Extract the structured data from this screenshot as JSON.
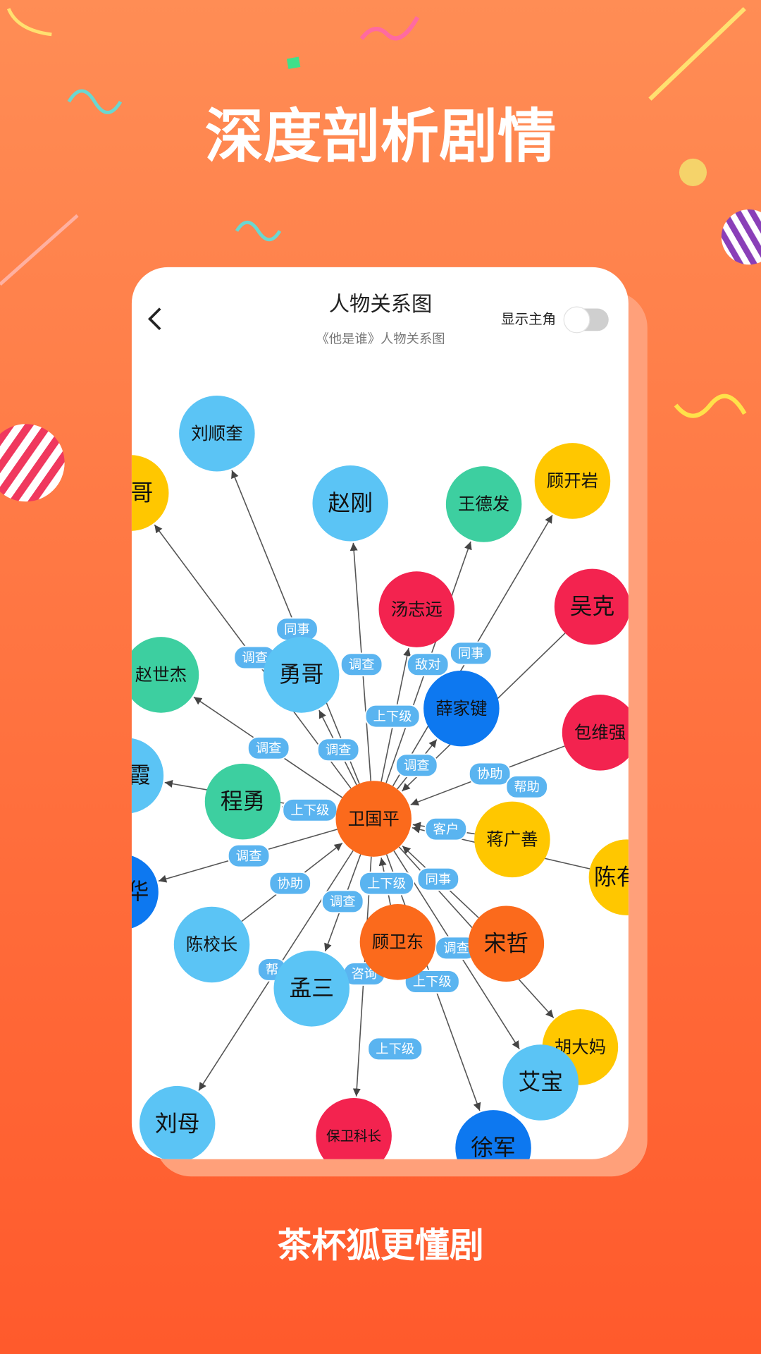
{
  "header": {
    "title": "深度剖析剧情"
  },
  "screen": {
    "title": "人物关系图",
    "subtitle": "《他是谁》人物关系图",
    "toggle": {
      "label": "显示主角",
      "on": false
    }
  },
  "nodes": [
    {
      "label": "卫国平",
      "color": "#fb6a1c"
    },
    {
      "label": "刘顺奎",
      "color": "#5bc4f5"
    },
    {
      "label": "哥",
      "color": "#ffc700"
    },
    {
      "label": "赵刚",
      "color": "#5bc4f5"
    },
    {
      "label": "王德发",
      "color": "#3dcfa0"
    },
    {
      "label": "顾开岩",
      "color": "#ffc700"
    },
    {
      "label": "汤志远",
      "color": "#f3234f"
    },
    {
      "label": "吴克",
      "color": "#f3234f"
    },
    {
      "label": "勇哥",
      "color": "#5bc4f5"
    },
    {
      "label": "赵世杰",
      "color": "#3dcfa0"
    },
    {
      "label": "薛家键",
      "color": "#0d78f0"
    },
    {
      "label": "包维强",
      "color": "#f3234f"
    },
    {
      "label": "霞",
      "color": "#5bc4f5"
    },
    {
      "label": "程勇",
      "color": "#3dcfa0"
    },
    {
      "label": "蒋广善",
      "color": "#ffc700"
    },
    {
      "label": "陈有",
      "color": "#ffc700"
    },
    {
      "label": "华",
      "color": "#0d78f0"
    },
    {
      "label": "陈校长",
      "color": "#5bc4f5"
    },
    {
      "label": "顾卫东",
      "color": "#fb6a1c"
    },
    {
      "label": "宋哲",
      "color": "#fb6a1c"
    },
    {
      "label": "孟三",
      "color": "#5bc4f5"
    },
    {
      "label": "胡大妈",
      "color": "#ffc700"
    },
    {
      "label": "艾宝",
      "color": "#5bc4f5"
    },
    {
      "label": "刘母",
      "color": "#5bc4f5"
    },
    {
      "label": "保卫科长",
      "color": "#f3234f"
    },
    {
      "label": "徐军",
      "color": "#0d78f0"
    }
  ],
  "edges": [
    {
      "from": 0,
      "to": 1,
      "label": "同事"
    },
    {
      "from": 0,
      "to": 2,
      "label": "调查"
    },
    {
      "from": 0,
      "to": 3,
      "label": "调查"
    },
    {
      "from": 0,
      "to": 4,
      "label": "敌对"
    },
    {
      "from": 0,
      "to": 5,
      "label": "同事"
    },
    {
      "from": 0,
      "to": 6,
      "label": "上下级"
    },
    {
      "from": 0,
      "to": 9,
      "label": "调查"
    },
    {
      "from": 0,
      "to": 8,
      "label": "调查"
    },
    {
      "from": 0,
      "to": 10,
      "label": "调查"
    },
    {
      "from": 11,
      "to": 0,
      "label": "协助"
    },
    {
      "from": 7,
      "to": 0,
      "label": "帮助"
    },
    {
      "from": 0,
      "to": 13,
      "label": "上下级"
    },
    {
      "from": 14,
      "to": 0,
      "label": "客户"
    },
    {
      "from": 0,
      "to": 16,
      "label": "调查"
    },
    {
      "from": 17,
      "to": 0,
      "label": "协助"
    },
    {
      "from": 18,
      "to": 0,
      "label": "上下级"
    },
    {
      "from": 19,
      "to": 0,
      "label": "同事"
    },
    {
      "from": 0,
      "to": 20,
      "label": "调查"
    },
    {
      "from": 0,
      "to": 21,
      "label": "调查"
    },
    {
      "from": 0,
      "to": 24,
      "label": "咨询"
    },
    {
      "from": 0,
      "to": 22,
      "label": "上下级"
    },
    {
      "from": 0,
      "to": 23,
      "label": "帮"
    },
    {
      "from": 0,
      "to": 25,
      "label": "上下级"
    },
    {
      "from": 0,
      "to": 12
    },
    {
      "from": 15,
      "to": 0
    }
  ],
  "footer": {
    "tagline": "茶杯狐更懂剧"
  }
}
